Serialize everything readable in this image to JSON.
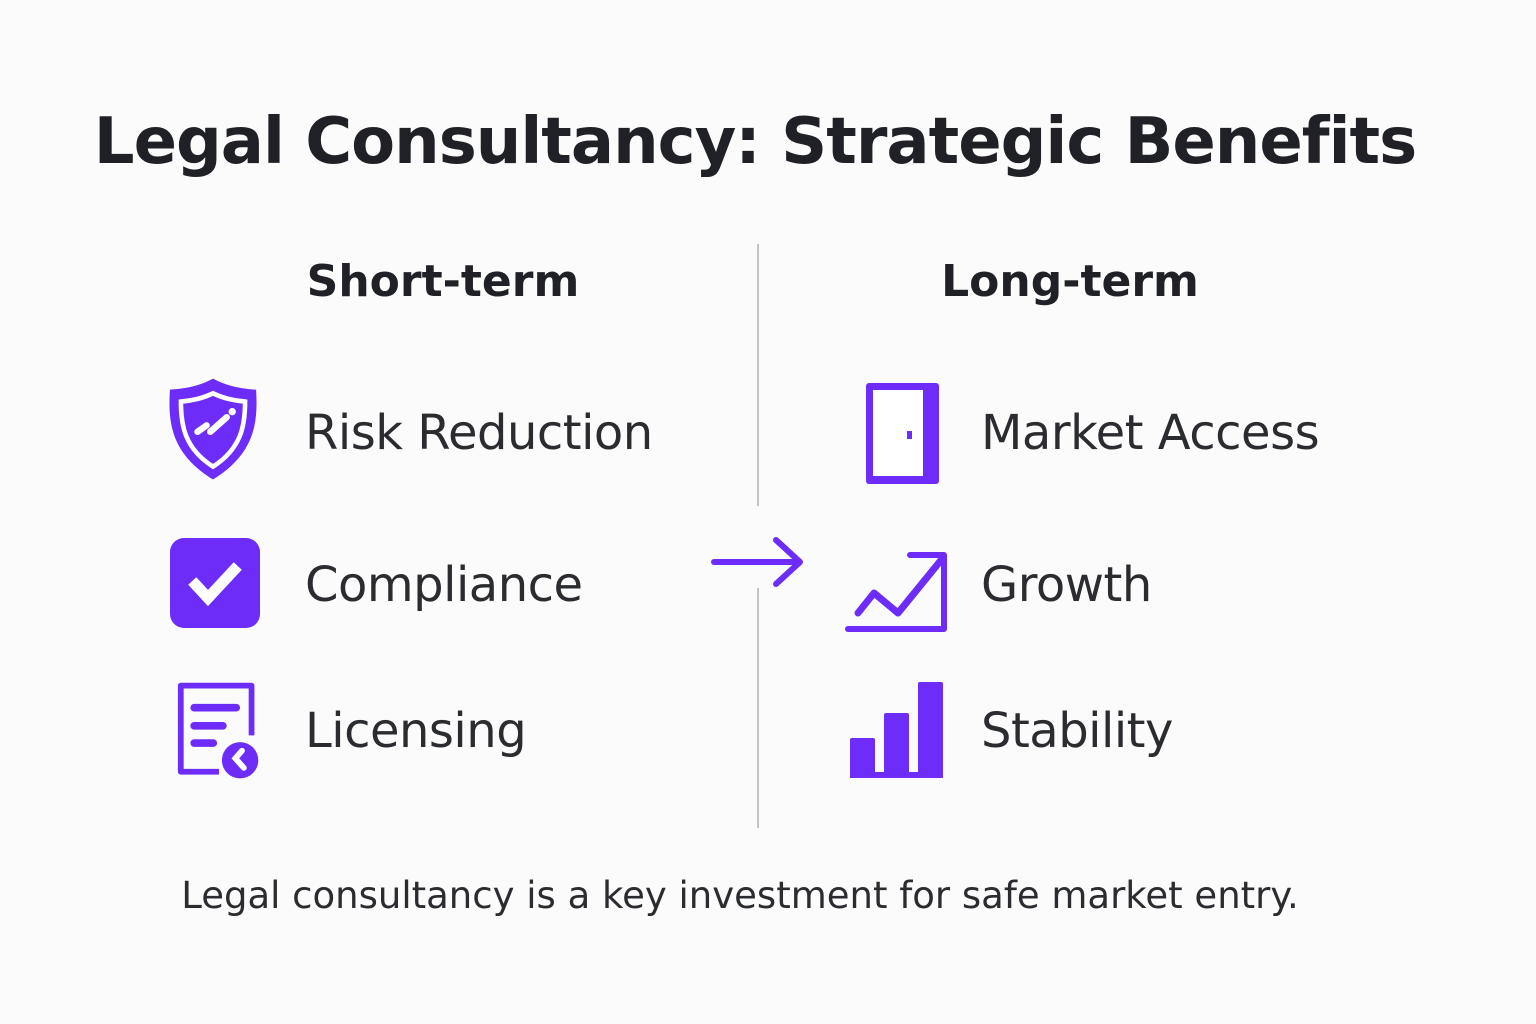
{
  "title": "Legal Consultancy: Strategic Benefits",
  "accent_color": "#6e2cf9",
  "columns": [
    {
      "heading": "Short-term",
      "items": [
        {
          "label": "Risk Reduction",
          "icon": "shield-check-icon"
        },
        {
          "label": "Compliance",
          "icon": "checkbox-check-icon"
        },
        {
          "label": "Licensing",
          "icon": "document-license-icon"
        }
      ]
    },
    {
      "heading": "Long-term",
      "items": [
        {
          "label": "Market Access",
          "icon": "door-icon"
        },
        {
          "label": "Growth",
          "icon": "trend-up-icon"
        },
        {
          "label": "Stability",
          "icon": "bar-chart-icon"
        }
      ]
    }
  ],
  "connector_icon": "arrow-right-icon",
  "footer": "Legal consultancy is a key investment for safe market entry."
}
